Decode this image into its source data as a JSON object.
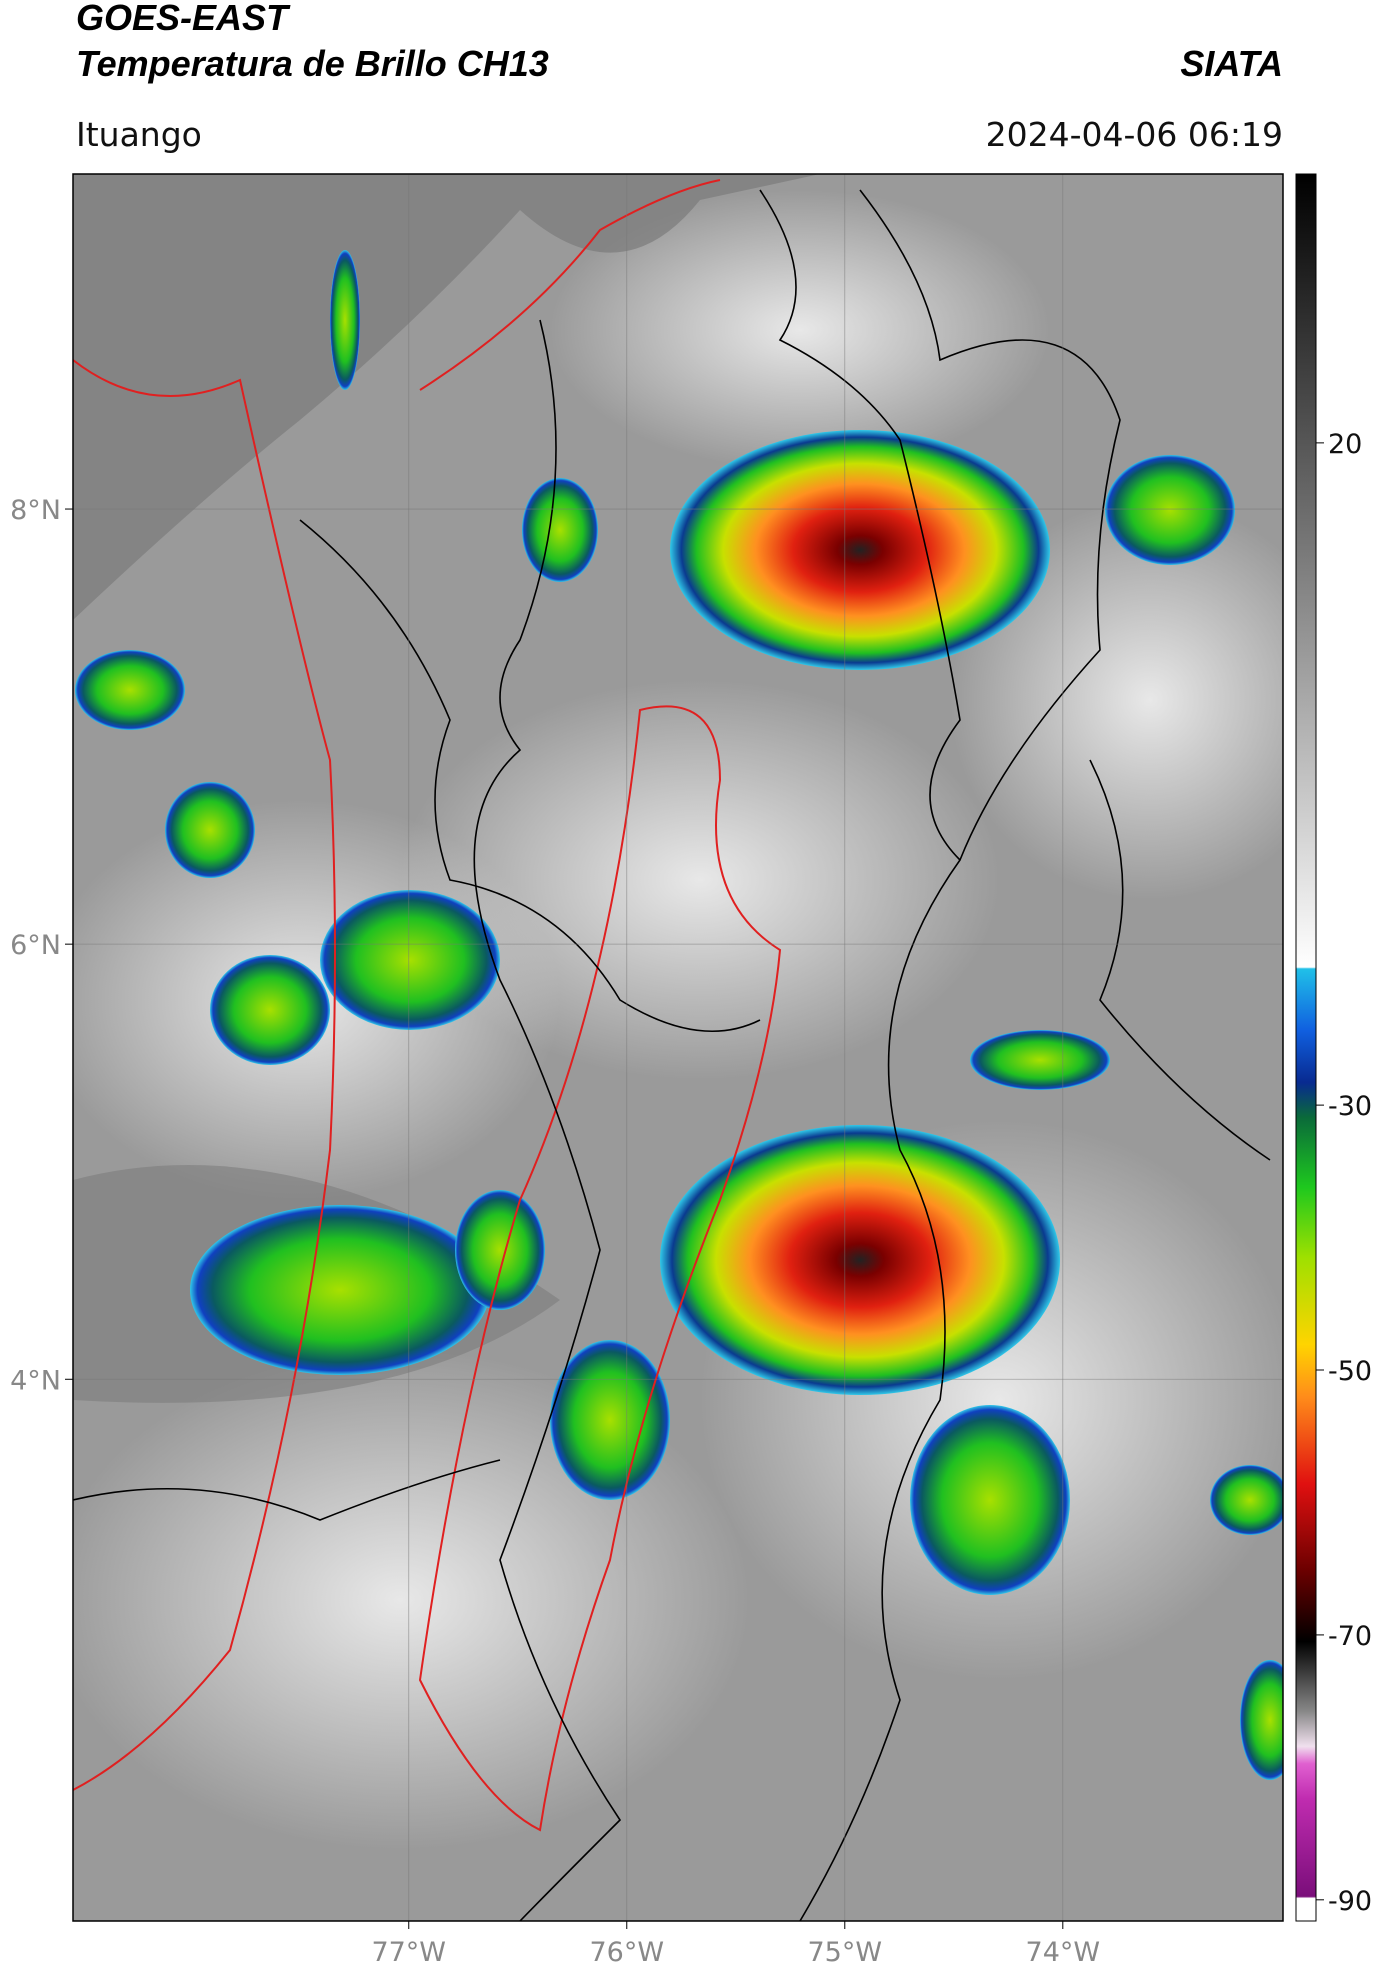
{
  "header": {
    "title_line1": "GOES-EAST",
    "title_line2": "Temperatura de Brillo CH13",
    "source": "SIATA",
    "location": "Ituango",
    "datetime": "2024-04-06 06:19"
  },
  "map": {
    "lonlim": [
      -78.54,
      -72.99
    ],
    "latlim": [
      1.51,
      9.54
    ],
    "lon_ticks": [
      {
        "value": -77,
        "label": "77°W"
      },
      {
        "value": -76,
        "label": "76°W"
      },
      {
        "value": -75,
        "label": "75°W"
      },
      {
        "value": -74,
        "label": "74°W"
      }
    ],
    "lat_ticks": [
      {
        "value": 8,
        "label": "8°N"
      },
      {
        "value": 6,
        "label": "6°N"
      },
      {
        "value": 4,
        "label": "4°N"
      }
    ]
  },
  "colorbar": {
    "lim": [
      -91.6,
      40.3
    ],
    "ticks": [
      20,
      -30,
      -50,
      -70,
      -90
    ]
  }
}
